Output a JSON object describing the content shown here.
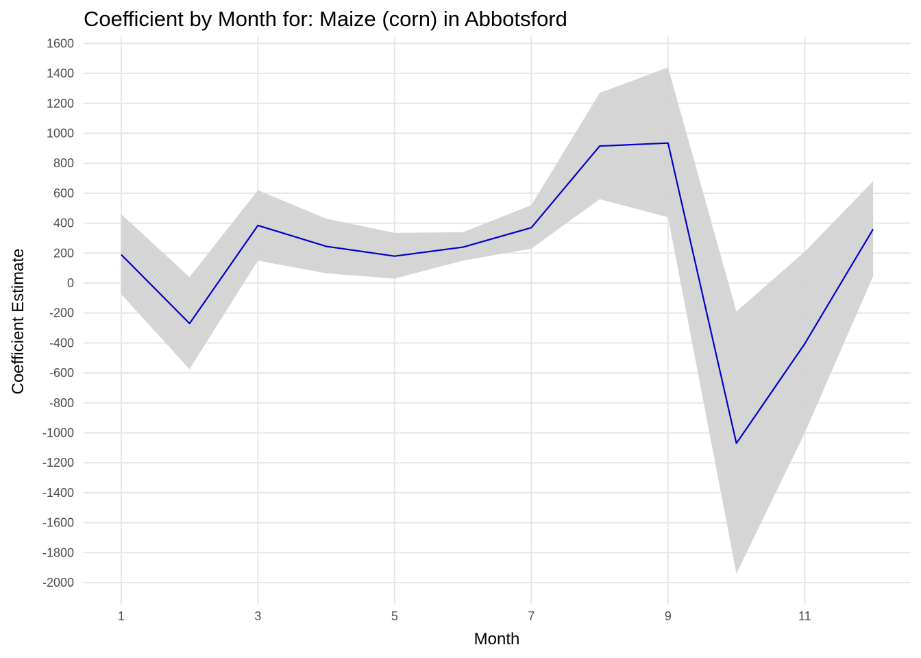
{
  "chart_data": {
    "type": "line",
    "title": "Coefficient by Month for: Maize (corn) in Abbotsford",
    "xlabel": "Month",
    "ylabel": "Coefficient Estimate",
    "xlim": [
      0.45,
      12.55
    ],
    "ylim": [
      -2100,
      1600
    ],
    "x_ticks": [
      1,
      3,
      5,
      7,
      9,
      11
    ],
    "x_tick_labels": [
      "1",
      "3",
      "5",
      "7",
      "9",
      "11"
    ],
    "y_ticks": [
      1600,
      1400,
      1200,
      1000,
      800,
      600,
      400,
      200,
      0,
      -200,
      -400,
      -600,
      -800,
      -1000,
      -1200,
      -1400,
      -1600,
      -1800,
      -2000
    ],
    "y_tick_labels": [
      "1600",
      "1400",
      "1200",
      "1000",
      "800",
      "600",
      "400",
      "200",
      "0",
      "-200",
      "-400",
      "-600",
      "-800",
      "-1000",
      "-1200",
      "-1400",
      "-1600",
      "-1800",
      "-2000"
    ],
    "grid": true,
    "legend": "none",
    "line_color": "#0000cc",
    "ribbon_color": "#d3d3d3",
    "x": [
      1,
      2,
      3,
      4,
      5,
      6,
      7,
      8,
      9,
      10,
      11,
      12
    ],
    "series": [
      {
        "values": [
          190,
          -270,
          385,
          245,
          180,
          240,
          370,
          915,
          935,
          -1070,
          -405,
          360
        ]
      }
    ],
    "confidence_band": {
      "upper": [
        460,
        40,
        620,
        430,
        335,
        340,
        520,
        1270,
        1440,
        -190,
        210,
        680
      ],
      "lower": [
        -75,
        -575,
        150,
        65,
        30,
        150,
        230,
        560,
        440,
        -1940,
        -1000,
        45
      ]
    }
  }
}
